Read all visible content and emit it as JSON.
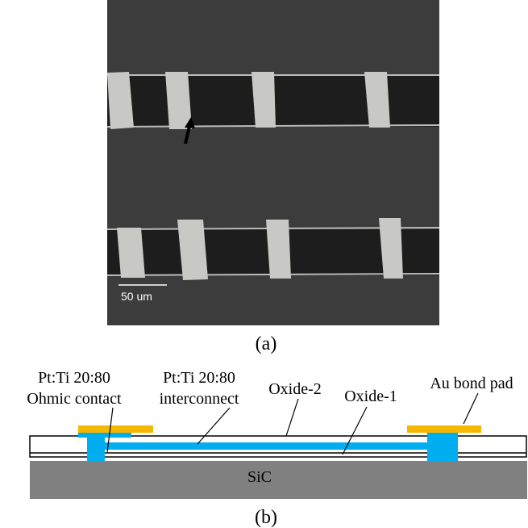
{
  "panel_a": {
    "scale_bar": "50 um",
    "caption": "(a)"
  },
  "panel_b": {
    "labels": {
      "ohmic_material": "Pt:Ti 20:80",
      "ohmic": "Ohmic contact",
      "interconnect_material": "Pt:Ti 20:80",
      "interconnect": "interconnect",
      "oxide2": "Oxide-2",
      "oxide1": "Oxide-1",
      "bond_pad": "Au bond pad",
      "substrate": "SiC"
    },
    "caption": "(b)"
  }
}
